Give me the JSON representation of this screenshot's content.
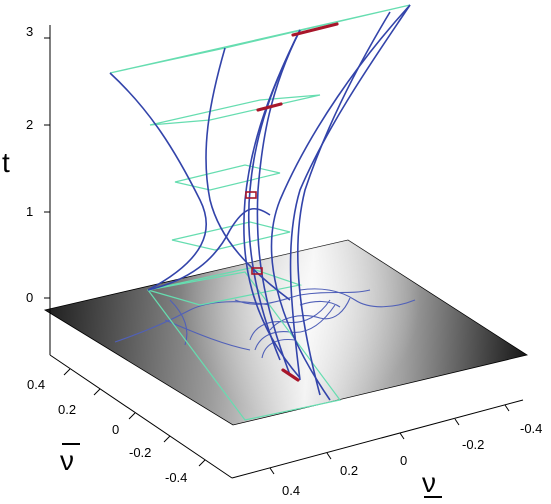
{
  "axes": {
    "t": {
      "label": "t",
      "ticks": [
        "0",
        "1",
        "2",
        "3"
      ]
    },
    "nu_bar": {
      "label": "ν",
      "overline": true,
      "ticks": [
        "0.4",
        "0.2",
        "0",
        "-0.2",
        "-0.4"
      ]
    },
    "nu": {
      "label": "ν",
      "underline": true,
      "ticks": [
        "0.4",
        "0.2",
        "0",
        "-0.2",
        "-0.4"
      ]
    }
  },
  "colors": {
    "curves": "#3344aa",
    "slices": "#66ddb0",
    "highlight": "#a8162a",
    "plane_dark": "#1e1e1e",
    "plane_light": "#f2f2f2"
  }
}
